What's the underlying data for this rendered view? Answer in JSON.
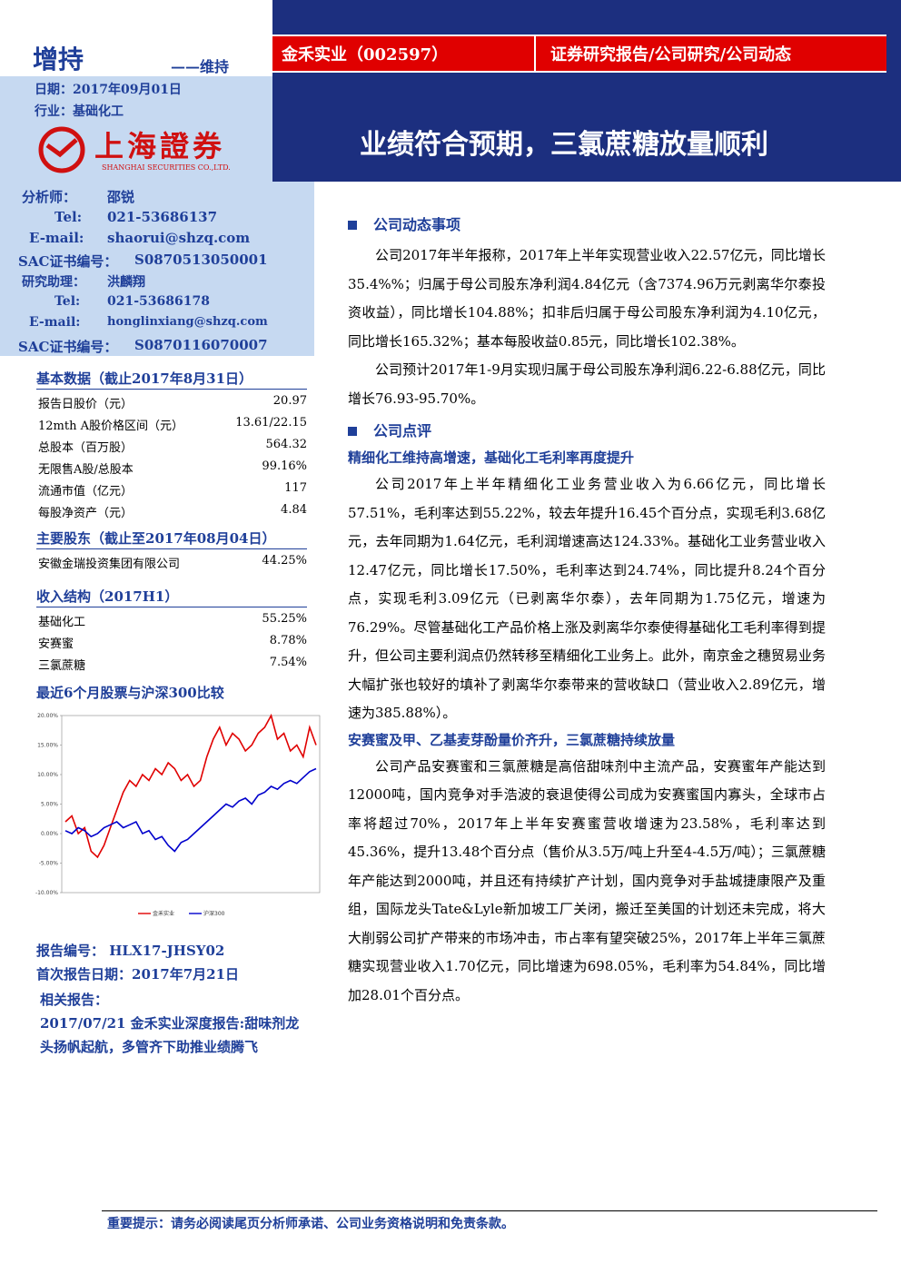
{
  "header": {
    "rating": "增持",
    "rating_change": "——维持",
    "date": "日期：2017年09月01日",
    "industry": "行业：基础化工",
    "logo_cn": "上海證券",
    "logo_en": "SHANGHAI SECURITIES CO.,LTD.",
    "company": "金禾实业（002597）",
    "report_type": "证券研究报告/公司研究/公司动态",
    "title": "业绩符合预期，三氯蔗糖放量顺利"
  },
  "analysts": [
    [
      "分析师：",
      "邵锐"
    ],
    [
      "Tel:",
      "021-53686137"
    ],
    [
      "E-mail:",
      "shaorui@shzq.com"
    ],
    [
      "SAC证书编号：",
      "S0870513050001"
    ],
    [
      "研究助理：",
      "洪麟翔"
    ],
    [
      "Tel:",
      "021-53686178"
    ],
    [
      "E-mail:",
      "honglinxiang@shzq.com"
    ],
    [
      "SAC证书编号：",
      "S0870116070007"
    ]
  ],
  "basic_data": {
    "title": "基本数据（截止2017年8月31日）",
    "rows": [
      [
        "报告日股价（元）",
        "20.97"
      ],
      [
        "12mth A股价格区间（元）",
        "13.61/22.15"
      ],
      [
        "总股本（百万股）",
        "564.32"
      ],
      [
        "无限售A股/总股本",
        "99.16%"
      ],
      [
        "流通市值（亿元）",
        "117"
      ],
      [
        "每股净资产（元）",
        "4.84"
      ]
    ]
  },
  "shareholders": {
    "title": "主要股东（截止至2017年08月04日）",
    "rows": [
      [
        "安徽金瑞投资集团有限公司",
        "44.25%"
      ]
    ]
  },
  "revenue": {
    "title": "收入结构（2017H1）",
    "rows": [
      [
        "基础化工",
        "55.25%"
      ],
      [
        "安赛蜜",
        "8.78%"
      ],
      [
        "三氯蔗糖",
        "7.54%"
      ]
    ]
  },
  "chart_data": {
    "type": "line",
    "title": "最近6个月股票与沪深300比较",
    "ylim": [
      -10,
      20
    ],
    "yticks": [
      {
        "value": -10,
        "label": "-10.00%"
      },
      {
        "value": -5,
        "label": "-5.00%"
      },
      {
        "value": 0,
        "label": "0.00%"
      },
      {
        "value": 5,
        "label": "5.00%"
      },
      {
        "value": 10,
        "label": "10.00%"
      },
      {
        "value": 15,
        "label": "15.00%"
      },
      {
        "value": 20,
        "label": "20.00%"
      }
    ],
    "grid": false,
    "series": [
      {
        "name": "金禾实业",
        "color": "#e00000",
        "values": [
          2,
          3,
          0,
          1,
          -3,
          -4,
          -2,
          1,
          4,
          7,
          9,
          8,
          10,
          9,
          11,
          10,
          12,
          11,
          9,
          10,
          8,
          9,
          13,
          16,
          18,
          15,
          17,
          16,
          14,
          15,
          17,
          18,
          20,
          16,
          17,
          14,
          15,
          13,
          18,
          15
        ]
      },
      {
        "name": "沪深300",
        "color": "#0000cc",
        "values": [
          0.5,
          0,
          1,
          0.5,
          -0.5,
          0,
          1,
          1.5,
          2,
          1,
          1.5,
          2,
          0,
          0.5,
          -1,
          -0.5,
          -2,
          -3,
          -1.5,
          -1,
          0,
          1,
          2,
          3,
          4,
          5,
          4.5,
          5.5,
          6,
          5,
          6.5,
          7,
          8,
          7.5,
          8.5,
          9,
          8.5,
          9.5,
          10.5,
          11
        ]
      }
    ]
  },
  "report_info": {
    "number": "报告编号： HLX17-JHSY02",
    "first_date": "首次报告日期：2017年7月21日",
    "related_title": "相关报告：",
    "related": [
      "2017/07/21 金禾实业深度报告:甜味剂龙头扬帆起航，多管齐下助推业绩腾飞"
    ]
  },
  "body": {
    "sections": [
      {
        "heading": "公司动态事项",
        "blocks": [
          {
            "paragraph": "公司2017年半年报称，2017年上半年实现营业收入22.57亿元，同比增长35.4%%；归属于母公司股东净利润4.84亿元（含7374.96万元剥离华尔泰投资收益），同比增长104.88%；扣非后归属于母公司股东净利润为4.10亿元，同比增长165.32%；基本每股收益0.85元，同比增长102.38%。"
          },
          {
            "paragraph": "公司预计2017年1-9月实现归属于母公司股东净利润6.22-6.88亿元，同比增长76.93-95.70%。"
          }
        ]
      },
      {
        "heading": "公司点评",
        "blocks": [
          {
            "subheading": "精细化工维持高增速，基础化工毛利率再度提升"
          },
          {
            "paragraph": "公司2017年上半年精细化工业务营业收入为6.66亿元，同比增长57.51%，毛利率达到55.22%，较去年提升16.45个百分点，实现毛利3.68亿元，去年同期为1.64亿元，毛利润增速高达124.33%。基础化工业务营业收入12.47亿元，同比增长17.50%，毛利率达到24.74%，同比提升8.24个百分点，实现毛利3.09亿元（已剥离华尔泰），去年同期为1.75亿元，增速为76.29%。尽管基础化工产品价格上涨及剥离华尔泰使得基础化工毛利率得到提升，但公司主要利润点仍然转移至精细化工业务上。此外，南京金之穗贸易业务大幅扩张也较好的填补了剥离华尔泰带来的营收缺口（营业收入2.89亿元，增速为385.88%）。"
          },
          {
            "subheading": "安赛蜜及甲、乙基麦芽酚量价齐升，三氯蔗糖持续放量"
          },
          {
            "paragraph": "公司产品安赛蜜和三氯蔗糖是高倍甜味剂中主流产品，安赛蜜年产能达到12000吨，国内竞争对手浩波的衰退使得公司成为安赛蜜国内寡头，全球市占率将超过70%，2017年上半年安赛蜜营收增速为23.58%，毛利率达到45.36%，提升13.48个百分点（售价从3.5万/吨上升至4-4.5万/吨）；三氯蔗糖年产能达到2000吨，并且还有持续扩产计划，国内竞争对手盐城捷康限产及重组，国际龙头Tate&Lyle新加坡工厂关闭，搬迁至美国的计划还未完成，将大大削弱公司扩产带来的市场冲击，市占率有望突破25%，2017年上半年三氯蔗糖实现营业收入1.70亿元，同比增速为698.05%，毛利率为54.84%，同比增加28.01个百分点。"
          }
        ]
      }
    ]
  },
  "footer": "重要提示：请务必阅读尾页分析师承诺、公司业务资格说明和免责条款。"
}
